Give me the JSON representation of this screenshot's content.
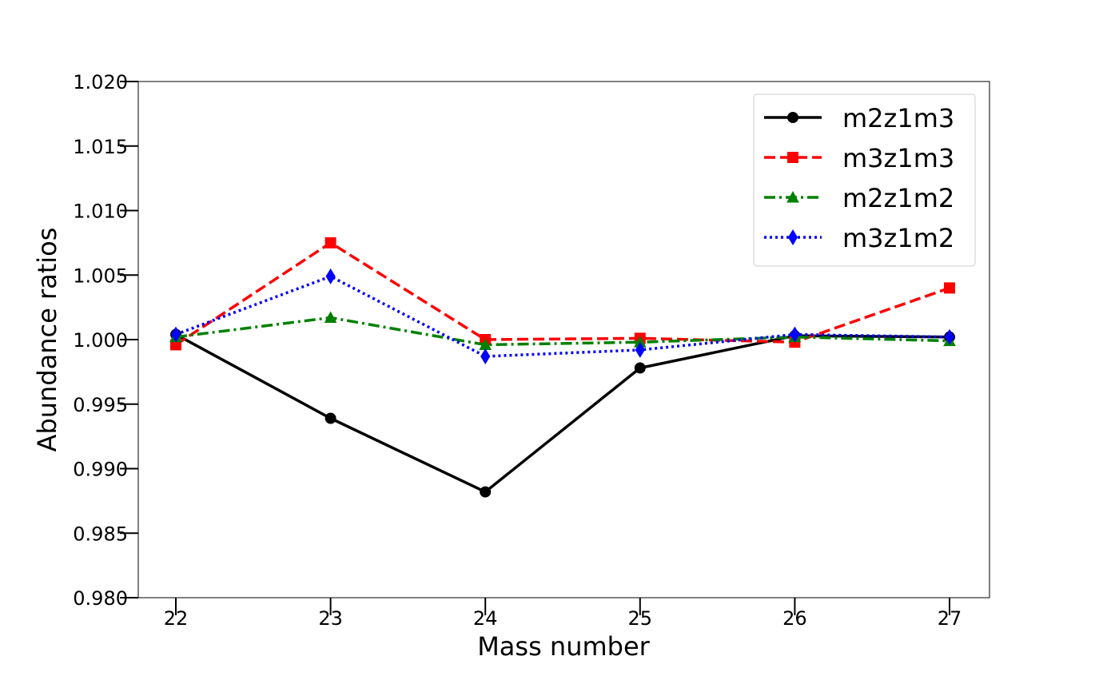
{
  "chart_data": {
    "type": "line",
    "title": "",
    "xlabel": "Mass number",
    "ylabel": "Abundance ratios",
    "x": [
      22,
      23,
      24,
      25,
      26,
      27
    ],
    "xticks": [
      "22",
      "23",
      "24",
      "25",
      "26",
      "27"
    ],
    "ylim": [
      0.98,
      1.02
    ],
    "yticks": [
      "0.980",
      "0.985",
      "0.990",
      "0.995",
      "1.000",
      "1.005",
      "1.010",
      "1.015",
      "1.020"
    ],
    "grid": false,
    "legend_position": "top-right",
    "series": [
      {
        "name": "m2z1m3",
        "color": "#000000",
        "marker": "circle",
        "dash": "solid",
        "values": [
          1.0004,
          0.9939,
          0.9882,
          0.9978,
          1.0003,
          1.0002
        ]
      },
      {
        "name": "m3z1m3",
        "color": "#ff0000",
        "marker": "square",
        "dash": "dashed",
        "values": [
          0.9996,
          1.0075,
          1.0,
          1.0001,
          0.9998,
          1.004
        ]
      },
      {
        "name": "m2z1m2",
        "color": "#008000",
        "marker": "triangle",
        "dash": "dashdot",
        "values": [
          1.0002,
          1.0017,
          0.9996,
          0.9998,
          1.0002,
          0.9999
        ]
      },
      {
        "name": "m3z1m2",
        "color": "#0000ff",
        "marker": "diamond",
        "dash": "dotted",
        "values": [
          1.0004,
          1.0049,
          0.9987,
          0.9992,
          1.0004,
          1.0002
        ]
      }
    ]
  }
}
